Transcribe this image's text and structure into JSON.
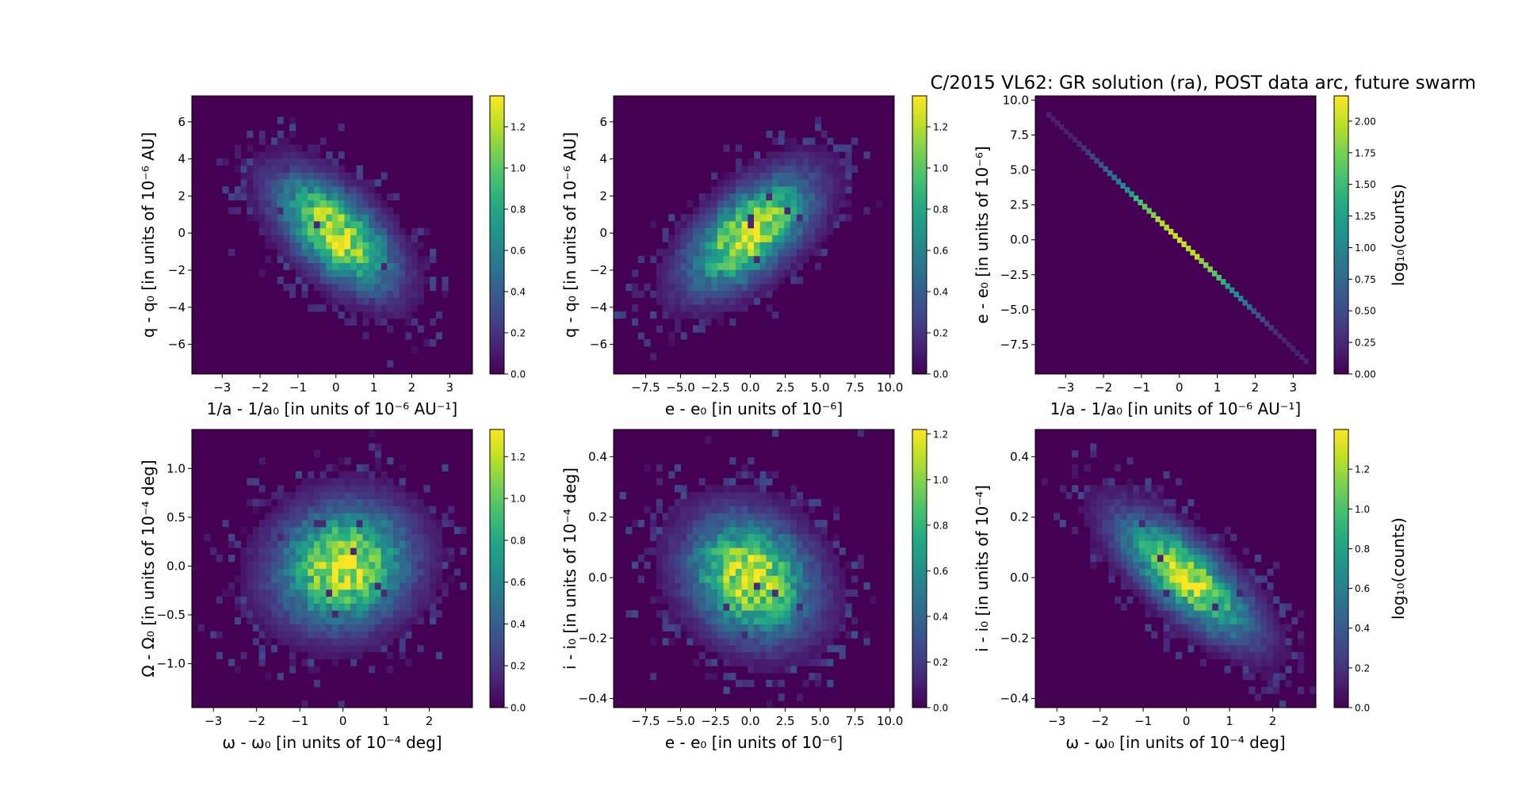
{
  "figure": {
    "title": "C/2015 VL62: GR solution (ra), POST data arc,  future swarm"
  },
  "colors": {
    "viridis": [
      "#440154",
      "#482475",
      "#414487",
      "#355f8d",
      "#2a788e",
      "#21918c",
      "#22a884",
      "#44bf70",
      "#7ad151",
      "#bddf26",
      "#fde725"
    ],
    "background": "#440154"
  },
  "chart_data": [
    {
      "type": "heatmap",
      "xlabel": "1/a - 1/a₀ [in units of 10⁻⁶ AU⁻¹]",
      "ylabel": "q - q₀ [in units of 10⁻⁶ AU]",
      "xlim": [
        -3.8,
        3.6
      ],
      "ylim": [
        -7.6,
        7.4
      ],
      "xticks": [
        -3,
        -2,
        -1,
        0,
        1,
        2,
        3
      ],
      "xtick_labels": [
        "−3",
        "−2",
        "−1",
        "0",
        "1",
        "2",
        "3"
      ],
      "yticks": [
        -6,
        -4,
        -2,
        0,
        2,
        4,
        6
      ],
      "ytick_labels": [
        "−6",
        "−4",
        "−2",
        "0",
        "2",
        "4",
        "6"
      ],
      "distribution": {
        "mean": [
          0,
          0
        ],
        "std": [
          1.0,
          2.0
        ],
        "correlation": -0.6
      },
      "colorbar": {
        "min": 0,
        "max": 1.35,
        "ticks": [
          0.0,
          0.2,
          0.4,
          0.6,
          0.8,
          1.0,
          1.2
        ],
        "tick_labels": [
          "0.0",
          "0.2",
          "0.4",
          "0.6",
          "0.8",
          "1.0",
          "1.2"
        ],
        "label": ""
      }
    },
    {
      "type": "heatmap",
      "xlabel": "e - e₀ [in units of 10⁻⁶]",
      "ylabel": "q - q₀ [in units of 10⁻⁶ AU]",
      "xlim": [
        -9.8,
        10.3
      ],
      "ylim": [
        -7.6,
        7.4
      ],
      "xticks": [
        -7.5,
        -5.0,
        -2.5,
        0.0,
        2.5,
        5.0,
        7.5,
        10.0
      ],
      "xtick_labels": [
        "−7.5",
        "−5.0",
        "−2.5",
        "0.0",
        "2.5",
        "5.0",
        "7.5",
        "10.0"
      ],
      "yticks": [
        -6,
        -4,
        -2,
        0,
        2,
        4,
        6
      ],
      "ytick_labels": [
        "−6",
        "−4",
        "−2",
        "0",
        "2",
        "4",
        "6"
      ],
      "distribution": {
        "mean": [
          0,
          0
        ],
        "std": [
          2.9,
          2.0
        ],
        "correlation": 0.6
      },
      "colorbar": {
        "min": 0,
        "max": 1.35,
        "ticks": [
          0.0,
          0.2,
          0.4,
          0.6,
          0.8,
          1.0,
          1.2
        ],
        "tick_labels": [
          "0.0",
          "0.2",
          "0.4",
          "0.6",
          "0.8",
          "1.0",
          "1.2"
        ],
        "label": ""
      }
    },
    {
      "type": "heatmap",
      "xlabel": "1/a - 1/a₀ [in units of 10⁻⁶ AU⁻¹]",
      "ylabel": "e - e₀ [in units of 10⁻⁶]",
      "xlim": [
        -3.8,
        3.6
      ],
      "ylim": [
        -9.6,
        10.3
      ],
      "xticks": [
        -3,
        -2,
        -1,
        0,
        1,
        2,
        3
      ],
      "xtick_labels": [
        "−3",
        "−2",
        "−1",
        "0",
        "1",
        "2",
        "3"
      ],
      "yticks": [
        -7.5,
        -5.0,
        -2.5,
        0.0,
        2.5,
        5.0,
        7.5,
        10.0
      ],
      "ytick_labels": [
        "−7.5",
        "−5.0",
        "−2.5",
        "0.0",
        "2.5",
        "5.0",
        "7.5",
        "10.0"
      ],
      "relation": {
        "slope": -2.6,
        "intercept": 0.0,
        "x_from": -3.5,
        "x_to": 3.4
      },
      "colorbar": {
        "min": 0,
        "max": 2.2,
        "ticks": [
          0.0,
          0.25,
          0.5,
          0.75,
          1.0,
          1.25,
          1.5,
          1.75,
          2.0
        ],
        "tick_labels": [
          "0.00",
          "0.25",
          "0.50",
          "0.75",
          "1.00",
          "1.25",
          "1.50",
          "1.75",
          "2.00"
        ],
        "label": "log₁₀(counts)"
      }
    },
    {
      "type": "heatmap",
      "xlabel": "ω - ω₀ [in units of 10⁻⁴ deg]",
      "ylabel": "Ω - Ω₀ [in units of 10⁻⁴ deg]",
      "xlim": [
        -3.5,
        3.0
      ],
      "ylim": [
        -1.45,
        1.4
      ],
      "xticks": [
        -3,
        -2,
        -1,
        0,
        1,
        2
      ],
      "xtick_labels": [
        "−3",
        "−2",
        "−1",
        "0",
        "1",
        "2"
      ],
      "yticks": [
        -1.0,
        -0.5,
        0.0,
        0.5,
        1.0
      ],
      "ytick_labels": [
        "−1.0",
        "−0.5",
        "0.0",
        "0.5",
        "1.0"
      ],
      "distribution": {
        "mean": [
          0,
          0
        ],
        "std": [
          1.0,
          0.4
        ],
        "correlation": 0.1
      },
      "colorbar": {
        "min": 0,
        "max": 1.33,
        "ticks": [
          0.0,
          0.2,
          0.4,
          0.6,
          0.8,
          1.0,
          1.2
        ],
        "tick_labels": [
          "0.0",
          "0.2",
          "0.4",
          "0.6",
          "0.8",
          "1.0",
          "1.2"
        ],
        "label": ""
      }
    },
    {
      "type": "heatmap",
      "xlabel": "e - e₀ [in units of 10⁻⁶]",
      "ylabel": "i - i₀ [in units of 10⁻⁴ deg]",
      "xlim": [
        -9.8,
        10.3
      ],
      "ylim": [
        -0.43,
        0.49
      ],
      "xticks": [
        -7.5,
        -5.0,
        -2.5,
        0.0,
        2.5,
        5.0,
        7.5,
        10.0
      ],
      "xtick_labels": [
        "−7.5",
        "−5.0",
        "−2.5",
        "0.0",
        "2.5",
        "5.0",
        "7.5",
        "10.0"
      ],
      "yticks": [
        -0.4,
        -0.2,
        0.0,
        0.2,
        0.4
      ],
      "ytick_labels": [
        "−0.4",
        "−0.2",
        "0.0",
        "0.2",
        "0.4"
      ],
      "distribution": {
        "mean": [
          0,
          0
        ],
        "std": [
          2.9,
          0.13
        ],
        "correlation": -0.2
      },
      "colorbar": {
        "min": 0,
        "max": 1.22,
        "ticks": [
          0.0,
          0.2,
          0.4,
          0.6,
          0.8,
          1.0,
          1.2
        ],
        "tick_labels": [
          "0.0",
          "0.2",
          "0.4",
          "0.6",
          "0.8",
          "1.0",
          "1.2"
        ],
        "label": ""
      }
    },
    {
      "type": "heatmap",
      "xlabel": "ω - ω₀ [in units of 10⁻⁴ deg]",
      "ylabel": "i - i₀ [in units of 10⁻⁴]",
      "xlim": [
        -3.5,
        3.0
      ],
      "ylim": [
        -0.43,
        0.49
      ],
      "xticks": [
        -3,
        -2,
        -1,
        0,
        1,
        2
      ],
      "xtick_labels": [
        "−3",
        "−2",
        "−1",
        "0",
        "1",
        "2"
      ],
      "yticks": [
        -0.4,
        -0.2,
        0.0,
        0.2,
        0.4
      ],
      "ytick_labels": [
        "−0.4",
        "−0.2",
        "0.0",
        "0.2",
        "0.4"
      ],
      "distribution": {
        "mean": [
          0,
          0
        ],
        "std": [
          1.0,
          0.13
        ],
        "correlation": -0.75
      },
      "colorbar": {
        "min": 0,
        "max": 1.4,
        "ticks": [
          0.0,
          0.2,
          0.4,
          0.6,
          0.8,
          1.0,
          1.2
        ],
        "tick_labels": [
          "0.0",
          "0.2",
          "0.4",
          "0.6",
          "0.8",
          "1.0",
          "1.2"
        ],
        "label": "log₁₀(counts)"
      }
    }
  ]
}
